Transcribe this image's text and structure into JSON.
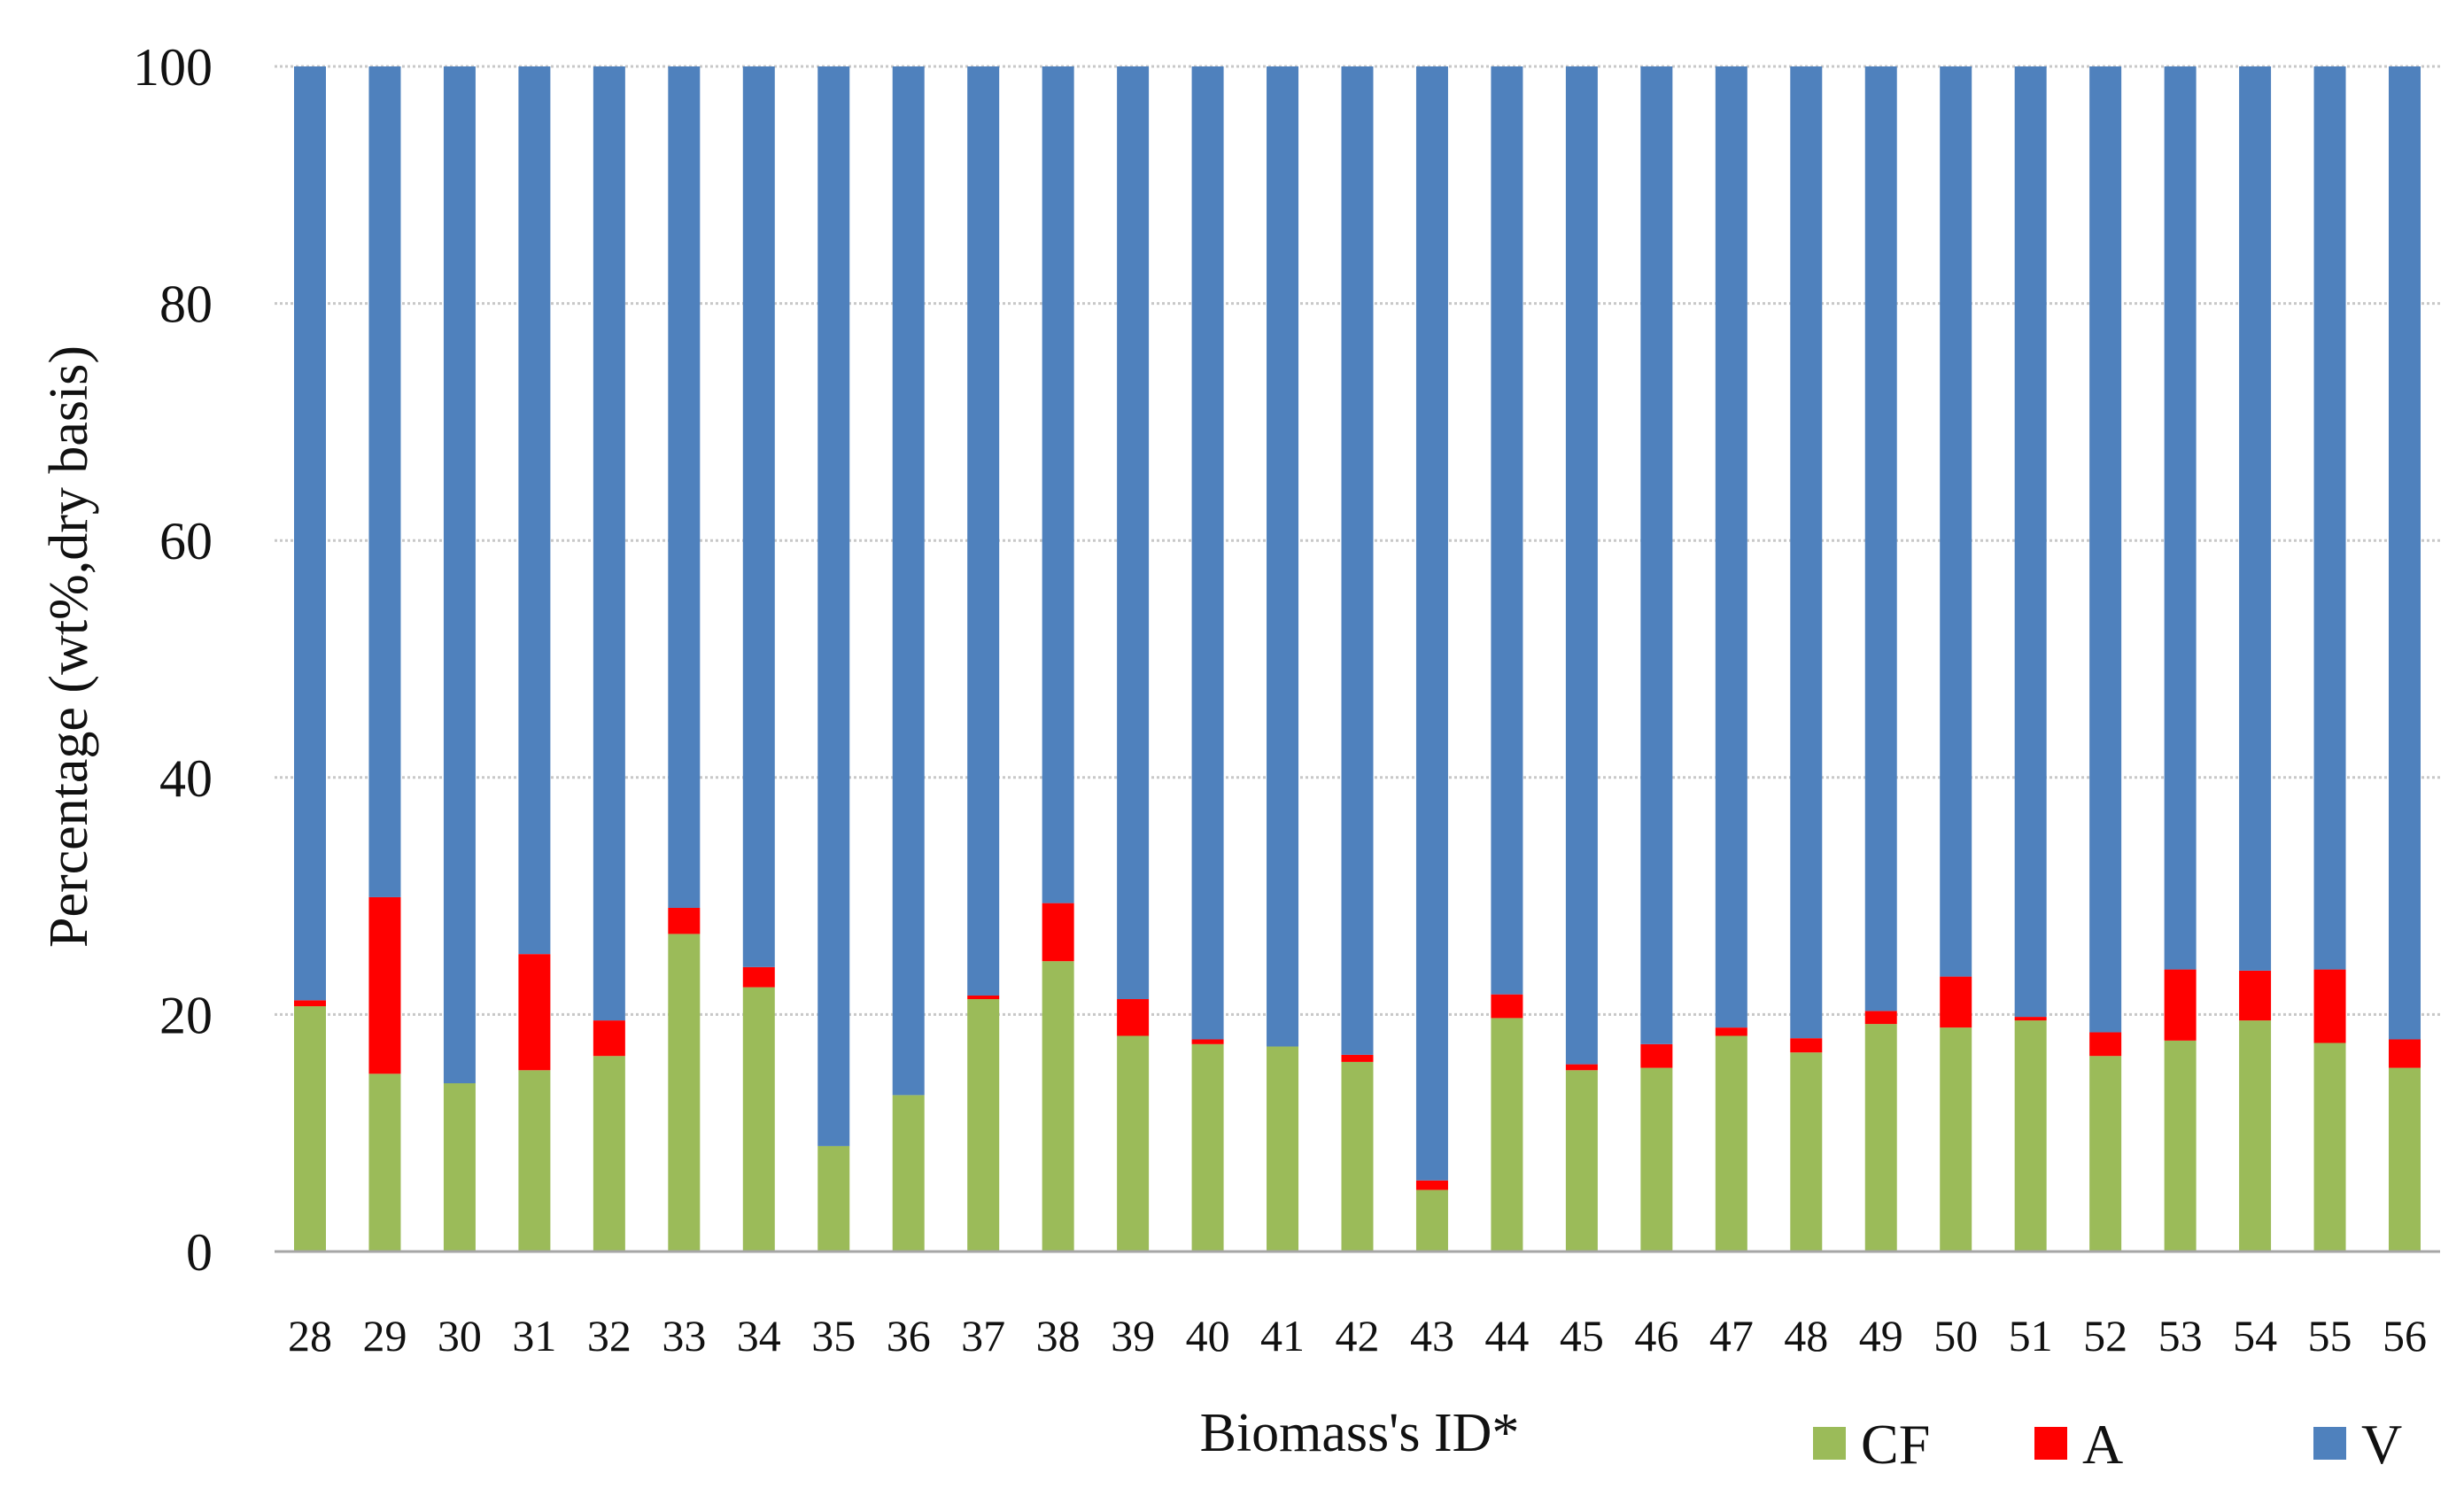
{
  "chart_data": {
    "type": "bar",
    "stacked": true,
    "title": "",
    "xlabel": "Biomass's ID*",
    "ylabel": "Percentage (wt%,dry basis)",
    "ylim": [
      0,
      100
    ],
    "yticks": [
      "0",
      "20",
      "40",
      "60",
      "80",
      "100"
    ],
    "grid": true,
    "legend_position": "bottom-right",
    "categories": [
      "28",
      "29",
      "30",
      "31",
      "32",
      "33",
      "34",
      "35",
      "36",
      "37",
      "38",
      "39",
      "40",
      "41",
      "42",
      "43",
      "44",
      "45",
      "46",
      "47",
      "48",
      "49",
      "50",
      "51",
      "52",
      "53",
      "54",
      "55",
      "56"
    ],
    "series": [
      {
        "name": "CF",
        "color": "#9BBB59",
        "values": [
          20.7,
          15.0,
          14.2,
          15.3,
          16.5,
          26.8,
          22.3,
          8.9,
          13.2,
          21.3,
          24.5,
          18.2,
          17.5,
          17.3,
          16.0,
          5.2,
          19.7,
          15.3,
          15.5,
          18.2,
          16.8,
          19.2,
          18.9,
          19.5,
          16.5,
          17.8,
          19.5,
          17.6,
          15.5
        ]
      },
      {
        "name": "A",
        "color": "#FF0000",
        "values": [
          0.5,
          14.9,
          0.0,
          9.8,
          3.0,
          2.2,
          1.7,
          0.0,
          0.0,
          0.3,
          4.9,
          3.1,
          0.4,
          0.0,
          0.6,
          0.8,
          2.0,
          0.5,
          2.0,
          0.7,
          1.2,
          1.1,
          4.3,
          0.3,
          2.0,
          6.0,
          4.2,
          6.2,
          2.4
        ]
      },
      {
        "name": "V",
        "color": "#4F81BD",
        "values": [
          78.8,
          70.1,
          85.8,
          74.9,
          80.5,
          71.0,
          76.0,
          91.1,
          86.8,
          78.4,
          70.6,
          78.7,
          82.1,
          82.7,
          83.4,
          94.0,
          78.3,
          84.2,
          82.5,
          81.1,
          82.0,
          79.7,
          76.8,
          80.2,
          81.5,
          76.2,
          76.3,
          76.2,
          82.1
        ]
      }
    ]
  }
}
